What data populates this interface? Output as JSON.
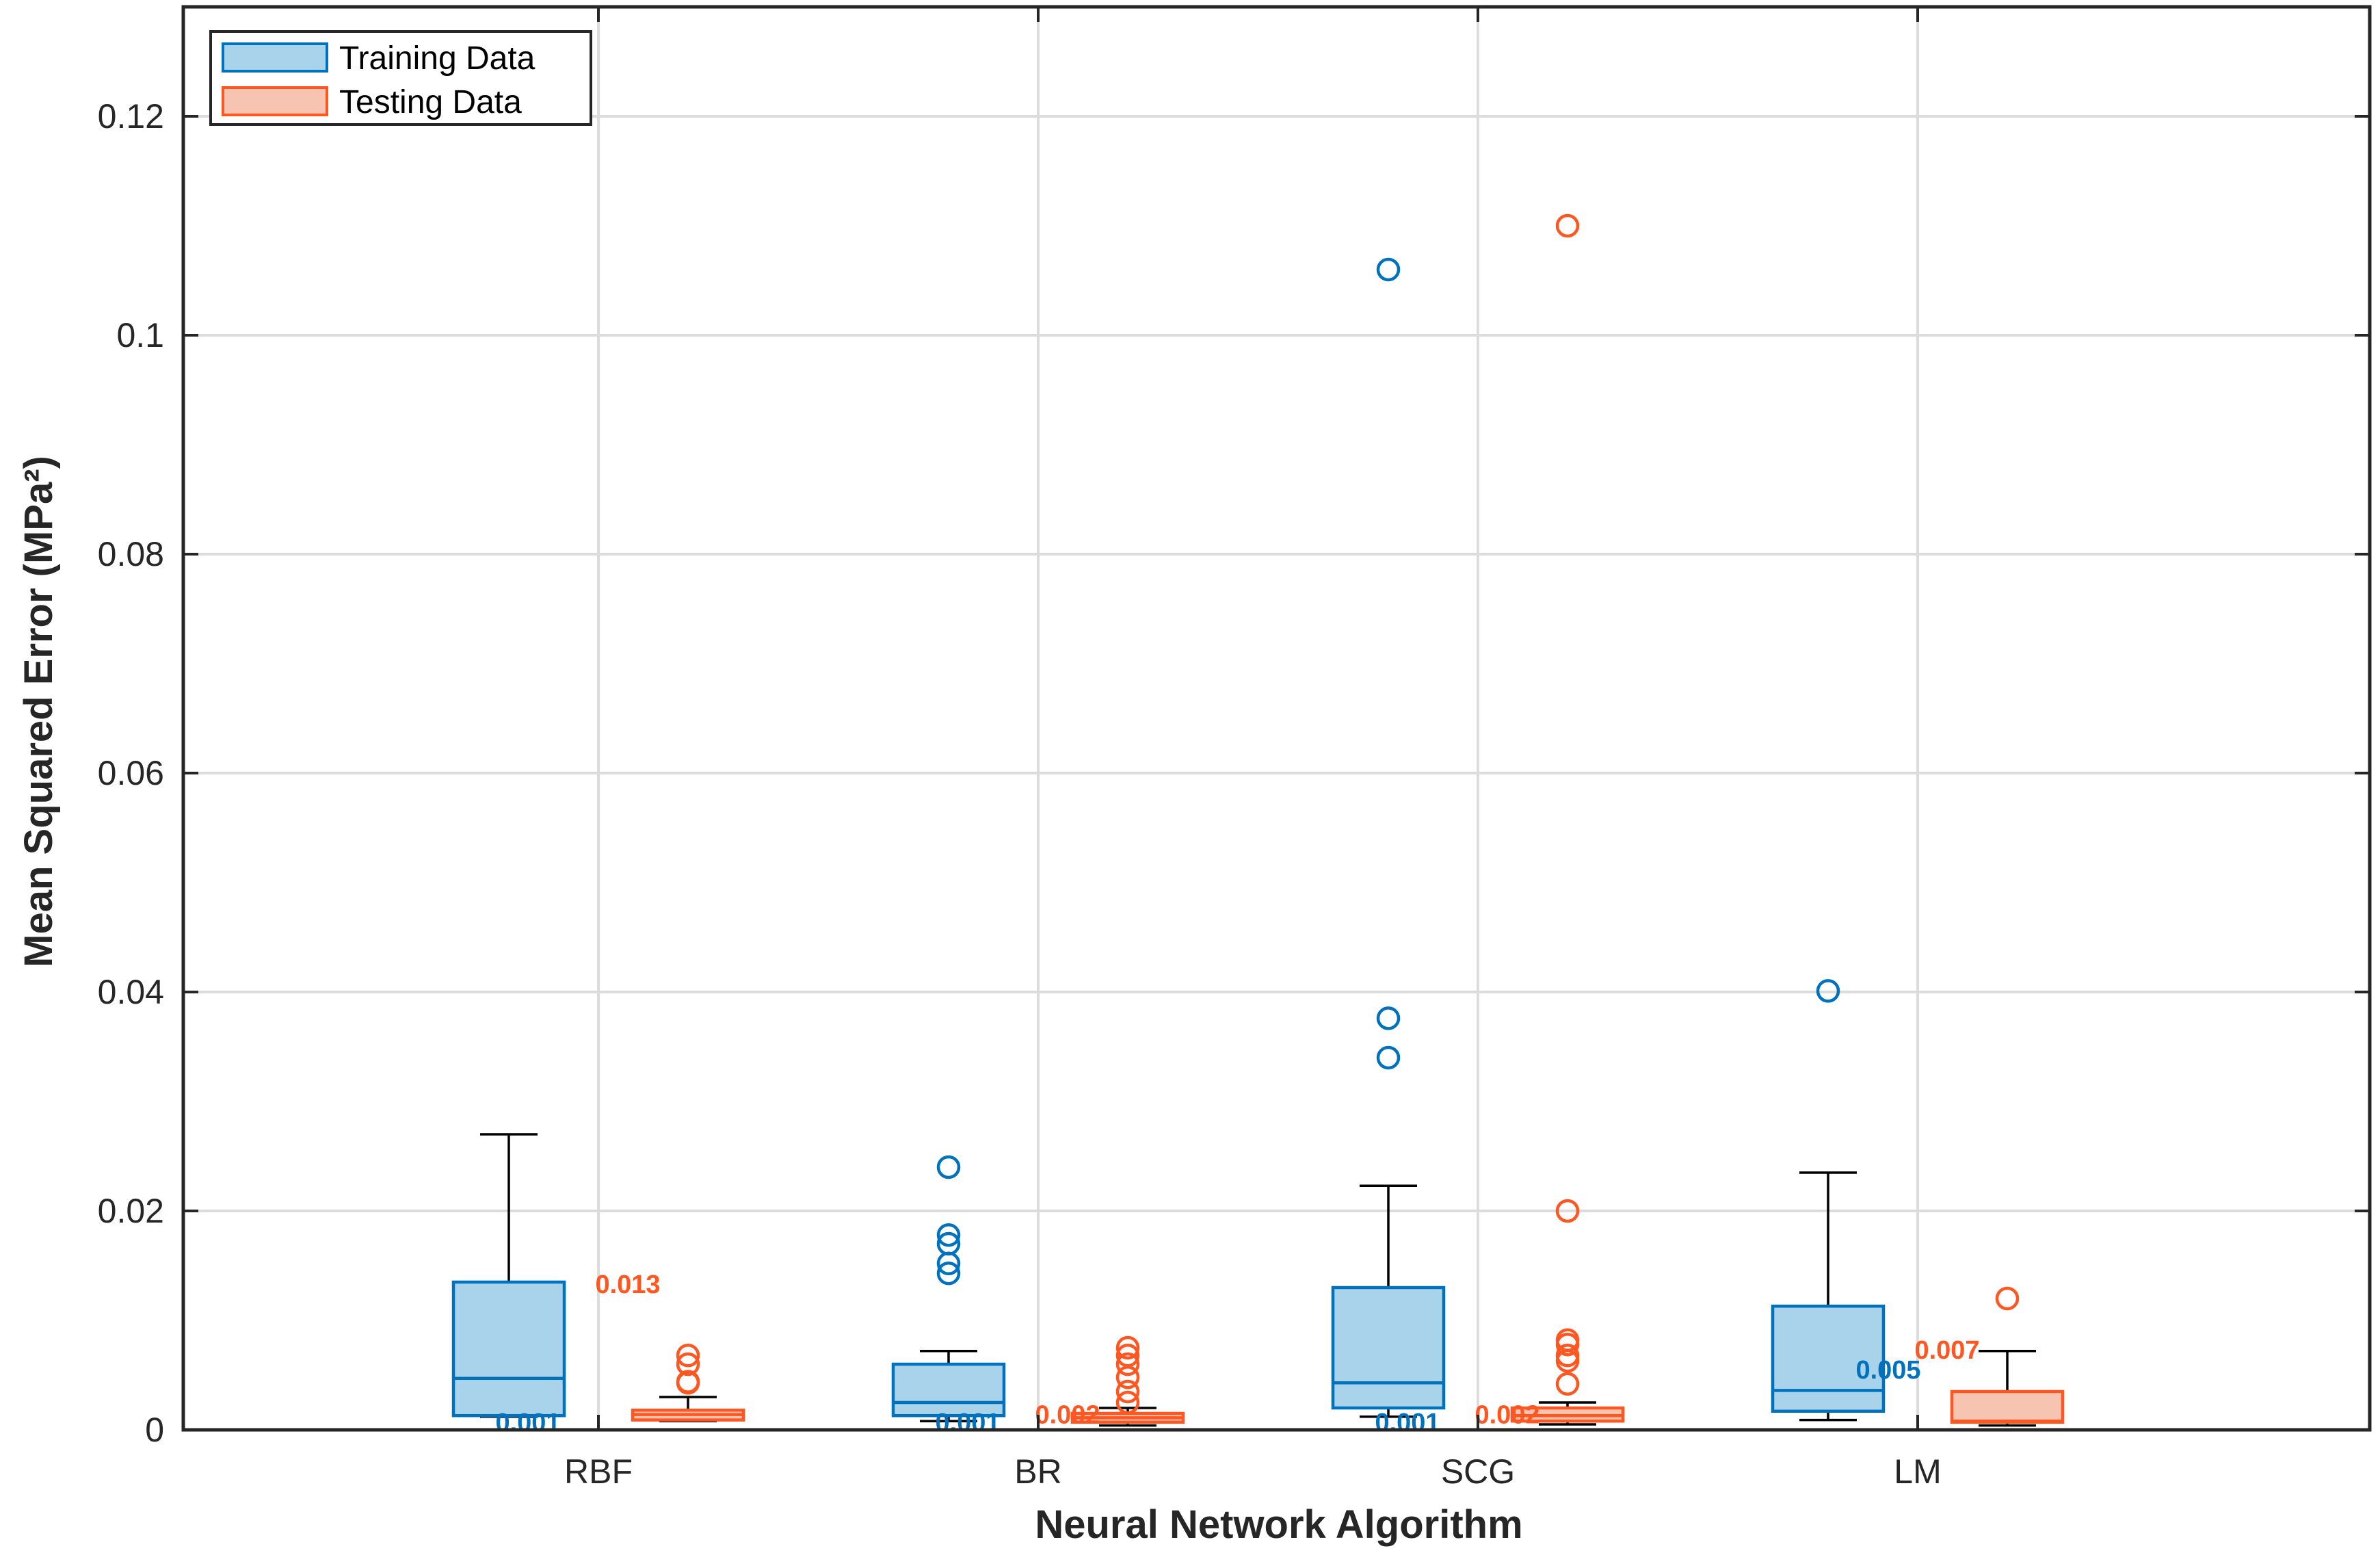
{
  "chart_data": {
    "type": "boxplot",
    "xlabel": "Neural Network Algorithm",
    "ylabel": "Mean Squared Error (MPa²)",
    "ylim": [
      0,
      0.13
    ],
    "yticks": [
      "0",
      "0.02",
      "0.04",
      "0.06",
      "0.08",
      "0.1",
      "0.12"
    ],
    "grid": true,
    "legend_position": "top-left",
    "categories": [
      "RBF",
      "BR",
      "SCG",
      "LM"
    ],
    "colors": {
      "Training Data": "#0072BD",
      "Testing Data": "#FF5722"
    },
    "fills": {
      "Training Data": "#A9D3EB",
      "Testing Data": "#F8C4B2"
    },
    "series": [
      {
        "name": "Training Data",
        "boxes": [
          {
            "category": "RBF",
            "whisker_low": 0.0012,
            "q1": 0.0013,
            "median": 0.0047,
            "q3": 0.0135,
            "whisker_high": 0.027,
            "outliers": [],
            "annotation": "0.001"
          },
          {
            "category": "BR",
            "whisker_low": 0.0008,
            "q1": 0.0013,
            "median": 0.0025,
            "q3": 0.006,
            "whisker_high": 0.0072,
            "outliers": [
              0.0143,
              0.0152,
              0.017,
              0.0178,
              0.024
            ],
            "annotation": "0.001"
          },
          {
            "category": "SCG",
            "whisker_low": 0.0012,
            "q1": 0.002,
            "median": 0.0043,
            "q3": 0.013,
            "whisker_high": 0.0223,
            "outliers": [
              0.034,
              0.0376,
              0.106
            ],
            "annotation": "0.001"
          },
          {
            "category": "LM",
            "whisker_low": 0.0009,
            "q1": 0.0017,
            "median": 0.0036,
            "q3": 0.0113,
            "whisker_high": 0.0235,
            "outliers": [
              0.0401
            ],
            "annotation": "0.005"
          }
        ]
      },
      {
        "name": "Testing Data",
        "boxes": [
          {
            "category": "RBF",
            "whisker_low": 0.0008,
            "q1": 0.0009,
            "median": 0.0014,
            "q3": 0.0018,
            "whisker_high": 0.003,
            "outliers": [
              0.0043,
              0.0044,
              0.006,
              0.0068
            ],
            "annotation": "0.013"
          },
          {
            "category": "BR",
            "whisker_low": 0.0004,
            "q1": 0.0007,
            "median": 0.0011,
            "q3": 0.0015,
            "whisker_high": 0.002,
            "outliers": [
              0.0025,
              0.0035,
              0.0048,
              0.006,
              0.0068,
              0.0075
            ],
            "annotation": "0.002"
          },
          {
            "category": "SCG",
            "whisker_low": 0.0005,
            "q1": 0.0008,
            "median": 0.0013,
            "q3": 0.002,
            "whisker_high": 0.0025,
            "outliers": [
              0.0042,
              0.0063,
              0.0068,
              0.0078,
              0.0082,
              0.02,
              0.11
            ],
            "annotation": "0.002"
          },
          {
            "category": "LM",
            "whisker_low": 0.0004,
            "q1": 0.0007,
            "median": 0.0008,
            "q3": 0.0035,
            "whisker_high": 0.0072,
            "outliers": [
              0.012
            ],
            "annotation": "0.007"
          }
        ]
      }
    ]
  }
}
